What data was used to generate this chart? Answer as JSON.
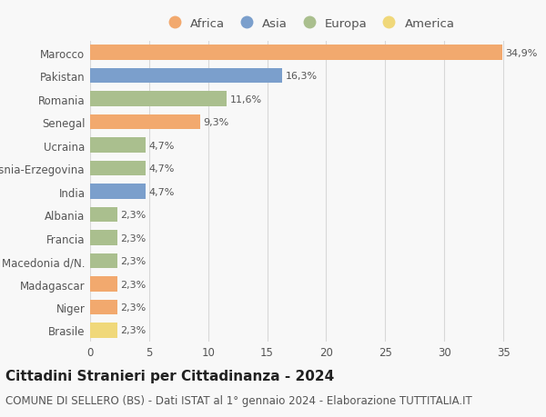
{
  "categories": [
    "Marocco",
    "Pakistan",
    "Romania",
    "Senegal",
    "Ucraina",
    "Bosnia-Erzegovina",
    "India",
    "Albania",
    "Francia",
    "Macedonia d/N.",
    "Madagascar",
    "Niger",
    "Brasile"
  ],
  "values": [
    34.9,
    16.3,
    11.6,
    9.3,
    4.7,
    4.7,
    4.7,
    2.3,
    2.3,
    2.3,
    2.3,
    2.3,
    2.3
  ],
  "labels": [
    "34,9%",
    "16,3%",
    "11,6%",
    "9,3%",
    "4,7%",
    "4,7%",
    "4,7%",
    "2,3%",
    "2,3%",
    "2,3%",
    "2,3%",
    "2,3%",
    "2,3%"
  ],
  "continents": [
    "Africa",
    "Asia",
    "Europa",
    "Africa",
    "Europa",
    "Europa",
    "Asia",
    "Europa",
    "Europa",
    "Europa",
    "Africa",
    "Africa",
    "America"
  ],
  "colors": {
    "Africa": "#F2A96E",
    "Asia": "#7B9FCC",
    "Europa": "#AABF8E",
    "America": "#F0D87A"
  },
  "legend_order": [
    "Africa",
    "Asia",
    "Europa",
    "America"
  ],
  "title": "Cittadini Stranieri per Cittadinanza - 2024",
  "subtitle": "COMUNE DI SELLERO (BS) - Dati ISTAT al 1° gennaio 2024 - Elaborazione TUTTITALIA.IT",
  "xlim": [
    0,
    37
  ],
  "xticks": [
    0,
    5,
    10,
    15,
    20,
    25,
    30,
    35
  ],
  "background_color": "#f8f8f8",
  "grid_color": "#d8d8d8",
  "bar_height": 0.65,
  "title_fontsize": 11,
  "subtitle_fontsize": 8.5,
  "label_fontsize": 8,
  "tick_fontsize": 8.5,
  "legend_fontsize": 9.5
}
